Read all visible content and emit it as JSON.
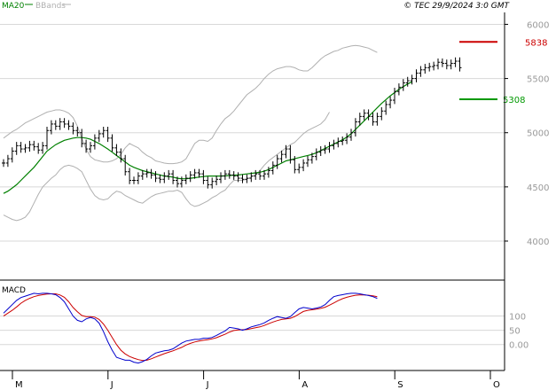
{
  "header": {
    "legend_ma": "MA20",
    "legend_bb": "BBands",
    "copyright": "© TEC 29/9/2024 3:0 GMT"
  },
  "colors": {
    "price": "#000000",
    "ma": "#008000",
    "bands": "#b0b0b0",
    "resistance": "#cc0000",
    "support": "#009900",
    "macd": "#0000cc",
    "signal": "#cc0000",
    "grid": "#d8d8d8",
    "axis_text": "#999999"
  },
  "chart_data": [
    {
      "type": "line",
      "title": "",
      "x_ticks": [
        "M",
        "J",
        "J",
        "A",
        "S",
        "O"
      ],
      "x_tick_index": [
        0,
        22,
        44,
        66,
        88,
        110
      ],
      "y_ticks": [
        "6000",
        "5500",
        "5000",
        "4500",
        "4000"
      ],
      "y_tick_values": [
        6000,
        5500,
        5000,
        4500,
        4000
      ],
      "ylim": [
        3640,
        6110
      ],
      "series": [
        {
          "name": "Price",
          "values": [
            4720,
            4760,
            4830,
            4880,
            4850,
            4860,
            4890,
            4870,
            4840,
            4880,
            5020,
            5080,
            5060,
            5100,
            5080,
            5060,
            5020,
            5000,
            4900,
            4850,
            4880,
            4950,
            4990,
            5020,
            4950,
            4860,
            4820,
            4760,
            4640,
            4560,
            4560,
            4600,
            4620,
            4630,
            4610,
            4580,
            4570,
            4600,
            4620,
            4560,
            4530,
            4560,
            4580,
            4610,
            4630,
            4620,
            4560,
            4520,
            4550,
            4570,
            4600,
            4620,
            4610,
            4600,
            4580,
            4570,
            4580,
            4600,
            4620,
            4600,
            4620,
            4650,
            4700,
            4760,
            4800,
            4850,
            4750,
            4660,
            4680,
            4720,
            4750,
            4780,
            4820,
            4840,
            4850,
            4880,
            4900,
            4920,
            4930,
            4960,
            5000,
            5100,
            5150,
            5180,
            5150,
            5100,
            5150,
            5200,
            5260,
            5300,
            5380,
            5420,
            5460,
            5480,
            5500,
            5550,
            5580,
            5600,
            5610,
            5620,
            5650,
            5640,
            5620,
            5640,
            5660,
            5600
          ]
        },
        {
          "name": "MA20",
          "values": [
            4440,
            4460,
            4490,
            4520,
            4560,
            4600,
            4640,
            4680,
            4730,
            4780,
            4830,
            4860,
            4890,
            4910,
            4930,
            4940,
            4950,
            4955,
            4955,
            4950,
            4940,
            4920,
            4900,
            4875,
            4850,
            4820,
            4790,
            4760,
            4730,
            4700,
            4680,
            4665,
            4650,
            4640,
            4630,
            4620,
            4610,
            4600,
            4595,
            4590,
            4580,
            4575,
            4575,
            4580,
            4585,
            4590,
            4595,
            4600,
            4600,
            4600,
            4600,
            4602,
            4605,
            4608,
            4610,
            4615,
            4620,
            4625,
            4630,
            4635,
            4645,
            4660,
            4680,
            4700,
            4720,
            4740,
            4750,
            4760,
            4770,
            4780,
            4790,
            4800,
            4815,
            4835,
            4855,
            4875,
            4895,
            4915,
            4935,
            4960,
            4990,
            5030,
            5070,
            5110,
            5150,
            5190,
            5230,
            5270,
            5305,
            5340,
            5370,
            5400,
            5425,
            5450,
            5470
          ]
        },
        {
          "name": "BB Upper",
          "values": [
            4950,
            4980,
            5010,
            5030,
            5060,
            5090,
            5110,
            5130,
            5150,
            5170,
            5190,
            5200,
            5210,
            5210,
            5200,
            5180,
            5140,
            5060,
            4950,
            4850,
            4780,
            4750,
            4740,
            4730,
            4730,
            4740,
            4760,
            4800,
            4860,
            4900,
            4880,
            4860,
            4820,
            4790,
            4770,
            4740,
            4730,
            4720,
            4715,
            4715,
            4720,
            4730,
            4760,
            4830,
            4900,
            4930,
            4930,
            4920,
            4950,
            5020,
            5080,
            5130,
            5160,
            5200,
            5250,
            5300,
            5350,
            5380,
            5410,
            5450,
            5500,
            5540,
            5570,
            5590,
            5600,
            5610,
            5610,
            5600,
            5580,
            5570,
            5570,
            5600,
            5640,
            5680,
            5710,
            5730,
            5750,
            5760,
            5780,
            5790,
            5800,
            5805,
            5800,
            5790,
            5780,
            5760,
            5740
          ]
        },
        {
          "name": "BB Lower",
          "values": [
            4240,
            4220,
            4200,
            4190,
            4200,
            4220,
            4270,
            4350,
            4430,
            4500,
            4540,
            4580,
            4610,
            4660,
            4690,
            4700,
            4690,
            4670,
            4640,
            4560,
            4480,
            4420,
            4390,
            4380,
            4390,
            4430,
            4460,
            4450,
            4420,
            4400,
            4380,
            4360,
            4350,
            4380,
            4410,
            4430,
            4440,
            4450,
            4460,
            4460,
            4470,
            4450,
            4390,
            4340,
            4320,
            4330,
            4350,
            4370,
            4400,
            4420,
            4450,
            4470,
            4520,
            4560,
            4560,
            4560,
            4570,
            4590,
            4610,
            4650,
            4700,
            4740,
            4770,
            4800,
            4830,
            4860,
            4890,
            4910,
            4950,
            4990,
            5020,
            5040,
            5060,
            5080,
            5120,
            5190
          ]
        }
      ],
      "series_start_index": [
        0,
        0,
        0,
        0
      ],
      "levels": [
        {
          "name": "Resistance",
          "value": 5838,
          "label": "5838"
        },
        {
          "name": "Support",
          "value": 5308,
          "label": "5308"
        }
      ]
    },
    {
      "type": "line",
      "title": "MACD",
      "y_ticks": [
        "100",
        "50",
        "0.00"
      ],
      "y_tick_values": [
        100,
        50,
        0
      ],
      "ylim": [
        -85,
        220
      ],
      "series": [
        {
          "name": "MACD",
          "values": [
            110,
            125,
            140,
            155,
            165,
            170,
            175,
            180,
            178,
            180,
            180,
            178,
            175,
            165,
            150,
            125,
            100,
            85,
            80,
            90,
            95,
            90,
            75,
            45,
            10,
            -20,
            -45,
            -50,
            -55,
            -55,
            -62,
            -65,
            -60,
            -52,
            -40,
            -30,
            -26,
            -22,
            -20,
            -15,
            -5,
            5,
            12,
            15,
            18,
            18,
            22,
            22,
            25,
            32,
            40,
            48,
            60,
            58,
            55,
            50,
            55,
            62,
            66,
            70,
            76,
            85,
            92,
            98,
            95,
            92,
            98,
            112,
            125,
            130,
            128,
            125,
            128,
            132,
            140,
            155,
            168,
            172,
            175,
            178,
            180,
            180,
            178,
            175,
            172,
            168,
            162
          ]
        },
        {
          "name": "Signal",
          "values": [
            100,
            110,
            120,
            132,
            145,
            155,
            162,
            168,
            172,
            175,
            177,
            178,
            178,
            174,
            166,
            150,
            130,
            115,
            102,
            98,
            98,
            96,
            88,
            72,
            50,
            25,
            0,
            -20,
            -33,
            -42,
            -48,
            -53,
            -56,
            -55,
            -50,
            -44,
            -38,
            -32,
            -27,
            -22,
            -16,
            -10,
            -2,
            4,
            9,
            12,
            15,
            17,
            20,
            24,
            30,
            36,
            44,
            49,
            51,
            52,
            53,
            56,
            59,
            62,
            67,
            73,
            79,
            84,
            88,
            90,
            92,
            98,
            107,
            116,
            120,
            122,
            124,
            127,
            131,
            138,
            146,
            154,
            161,
            166,
            170,
            173,
            174,
            174,
            173,
            171,
            168
          ]
        }
      ],
      "series_start_index": [
        0,
        0
      ]
    }
  ]
}
